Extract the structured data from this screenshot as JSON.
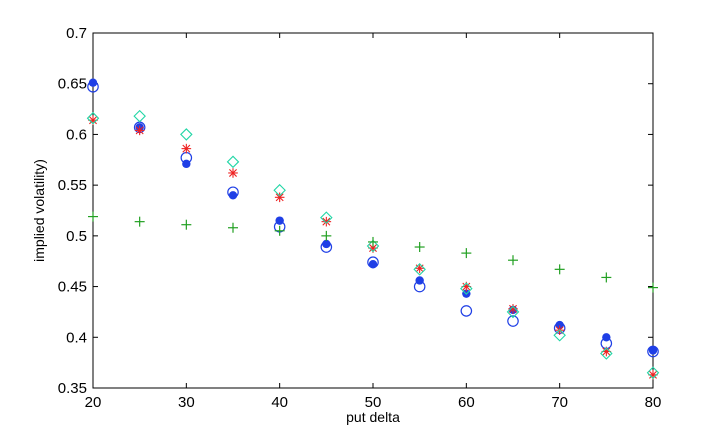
{
  "chart_data": {
    "type": "scatter",
    "xlabel": "put delta",
    "ylabel": "implied volatility)",
    "xlim": [
      20,
      80
    ],
    "ylim": [
      0.35,
      0.7
    ],
    "xticks": [
      20,
      30,
      40,
      50,
      60,
      70,
      80
    ],
    "yticks": [
      0.35,
      0.4,
      0.45,
      0.5,
      0.55,
      0.6,
      0.65,
      0.7
    ],
    "xtick_labels": [
      "20",
      "30",
      "40",
      "50",
      "60",
      "70",
      "80"
    ],
    "ytick_labels": [
      "0.35",
      "0.4",
      "0.45",
      "0.5",
      "0.55",
      "0.6",
      "0.65",
      "0.7"
    ],
    "grid": false,
    "legend": "none",
    "series": [
      {
        "marker": "filled-circle",
        "color": "#1f3fe6",
        "x": [
          20,
          25,
          30,
          35,
          40,
          45,
          50,
          55,
          60,
          65,
          70,
          75,
          80
        ],
        "y": [
          0.651,
          0.607,
          0.571,
          0.54,
          0.515,
          0.492,
          0.472,
          0.456,
          0.443,
          0.427,
          0.412,
          0.4,
          0.387
        ]
      },
      {
        "marker": "open-circle",
        "color": "#1f3fe6",
        "x": [
          20,
          25,
          30,
          35,
          40,
          45,
          50,
          55,
          60,
          65,
          70,
          75,
          80
        ],
        "y": [
          0.647,
          0.607,
          0.577,
          0.543,
          0.509,
          0.489,
          0.474,
          0.45,
          0.426,
          0.416,
          0.409,
          0.394,
          0.386
        ]
      },
      {
        "marker": "asterisk",
        "color": "#ee2222",
        "x": [
          20,
          25,
          30,
          35,
          40,
          45,
          50,
          55,
          60,
          65,
          70,
          75,
          80
        ],
        "y": [
          0.614,
          0.604,
          0.586,
          0.562,
          0.538,
          0.514,
          0.488,
          0.468,
          0.45,
          0.428,
          0.407,
          0.386,
          0.363
        ]
      },
      {
        "marker": "diamond",
        "color": "#22d6a6",
        "x": [
          20,
          25,
          30,
          35,
          40,
          45,
          50,
          55,
          60,
          65,
          70,
          75,
          80
        ],
        "y": [
          0.616,
          0.618,
          0.6,
          0.573,
          0.545,
          0.518,
          0.49,
          0.467,
          0.448,
          0.425,
          0.402,
          0.384,
          0.365
        ]
      },
      {
        "marker": "plus",
        "color": "#22a022",
        "x": [
          20,
          25,
          30,
          35,
          40,
          45,
          50,
          55,
          60,
          65,
          70,
          75,
          80
        ],
        "y": [
          0.519,
          0.514,
          0.511,
          0.508,
          0.505,
          0.5,
          0.494,
          0.489,
          0.483,
          0.476,
          0.467,
          0.459,
          0.449
        ]
      }
    ]
  }
}
